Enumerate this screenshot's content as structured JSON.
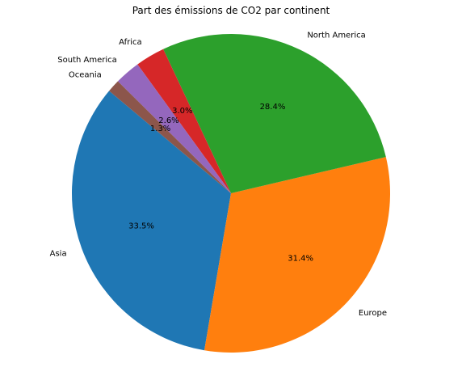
{
  "chart_data": {
    "type": "pie",
    "title": "Part des émissions de CO2 par continent",
    "start_angle_deg": 140,
    "direction": "counterclockwise",
    "legend": "none",
    "slices": [
      {
        "label": "Asia",
        "value": 33.5,
        "pct_label": "33.5%",
        "color": "#1f77b4"
      },
      {
        "label": "Europe",
        "value": 31.4,
        "pct_label": "31.4%",
        "color": "#ff7f0e"
      },
      {
        "label": "North America",
        "value": 28.4,
        "pct_label": "28.4%",
        "color": "#2ca02c"
      },
      {
        "label": "Africa",
        "value": 3.0,
        "pct_label": "3.0%",
        "color": "#d62728"
      },
      {
        "label": "South America",
        "value": 2.6,
        "pct_label": "2.6%",
        "color": "#9467bd"
      },
      {
        "label": "Oceania",
        "value": 1.3,
        "pct_label": "1.3%",
        "color": "#8c564b"
      }
    ]
  }
}
